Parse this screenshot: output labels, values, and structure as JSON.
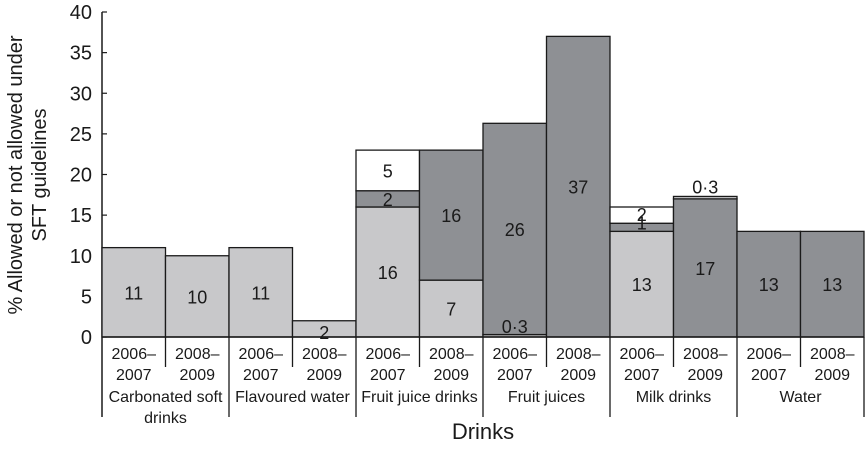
{
  "chart_data": {
    "type": "bar",
    "stacked": true,
    "title": "",
    "xlabel": "Drinks",
    "ylabel": "% Allowed or not allowed under SFT guidelines",
    "ylabel_lines": [
      "% Allowed or not allowed under",
      "SFT guidelines"
    ],
    "ylim": [
      0,
      40
    ],
    "yticks": [
      0,
      5,
      10,
      15,
      20,
      25,
      30,
      35,
      40
    ],
    "grid": false,
    "legend": null,
    "colors": {
      "light": "#c8c8ca",
      "dark": "#8e9094",
      "white": "#ffffff",
      "outline": "#1a1a1a"
    },
    "groups": [
      {
        "category": "Carbonated soft drinks",
        "category_lines": [
          "Carbonated soft",
          "drinks"
        ],
        "bars": [
          {
            "period": "2006–2007",
            "segments": [
              {
                "shade": "light",
                "value": 11,
                "label": "11"
              }
            ]
          },
          {
            "period": "2008–2009",
            "segments": [
              {
                "shade": "light",
                "value": 10,
                "label": "10"
              }
            ]
          }
        ]
      },
      {
        "category": "Flavoured water",
        "category_lines": [
          "Flavoured water"
        ],
        "bars": [
          {
            "period": "2006–2007",
            "segments": [
              {
                "shade": "light",
                "value": 11,
                "label": "11"
              }
            ]
          },
          {
            "period": "2008–2009",
            "segments": [
              {
                "shade": "light",
                "value": 2,
                "label": "2"
              }
            ]
          }
        ]
      },
      {
        "category": "Fruit juice drinks",
        "category_lines": [
          "Fruit juice drinks"
        ],
        "bars": [
          {
            "period": "2006–2007",
            "segments": [
              {
                "shade": "light",
                "value": 16,
                "label": "16"
              },
              {
                "shade": "dark",
                "value": 2,
                "label": "2"
              },
              {
                "shade": "white",
                "value": 5,
                "label": "5"
              }
            ]
          },
          {
            "period": "2008–2009",
            "segments": [
              {
                "shade": "light",
                "value": 7,
                "label": "7"
              },
              {
                "shade": "dark",
                "value": 16,
                "label": "16"
              }
            ]
          }
        ]
      },
      {
        "category": "Fruit juices",
        "category_lines": [
          "Fruit juices"
        ],
        "bars": [
          {
            "period": "2006–2007",
            "segments": [
              {
                "shade": "light",
                "value": 0.3,
                "label": "0·3"
              },
              {
                "shade": "dark",
                "value": 26,
                "label": "26"
              }
            ]
          },
          {
            "period": "2008–2009",
            "segments": [
              {
                "shade": "dark",
                "value": 37,
                "label": "37"
              }
            ]
          }
        ]
      },
      {
        "category": "Milk drinks",
        "category_lines": [
          "Milk drinks"
        ],
        "bars": [
          {
            "period": "2006–2007",
            "segments": [
              {
                "shade": "light",
                "value": 13,
                "label": "13"
              },
              {
                "shade": "dark",
                "value": 1,
                "label": "1"
              },
              {
                "shade": "white",
                "value": 2,
                "label": "2"
              }
            ]
          },
          {
            "period": "2008–2009",
            "segments": [
              {
                "shade": "dark",
                "value": 17,
                "label": "17"
              },
              {
                "shade": "light",
                "value": 0.3,
                "label": "0·3"
              }
            ]
          }
        ]
      },
      {
        "category": "Water",
        "category_lines": [
          "Water"
        ],
        "bars": [
          {
            "period": "2006–2007",
            "segments": [
              {
                "shade": "dark",
                "value": 13,
                "label": "13"
              }
            ]
          },
          {
            "period": "2008–2009",
            "segments": [
              {
                "shade": "dark",
                "value": 13,
                "label": "13"
              }
            ]
          }
        ]
      }
    ]
  }
}
